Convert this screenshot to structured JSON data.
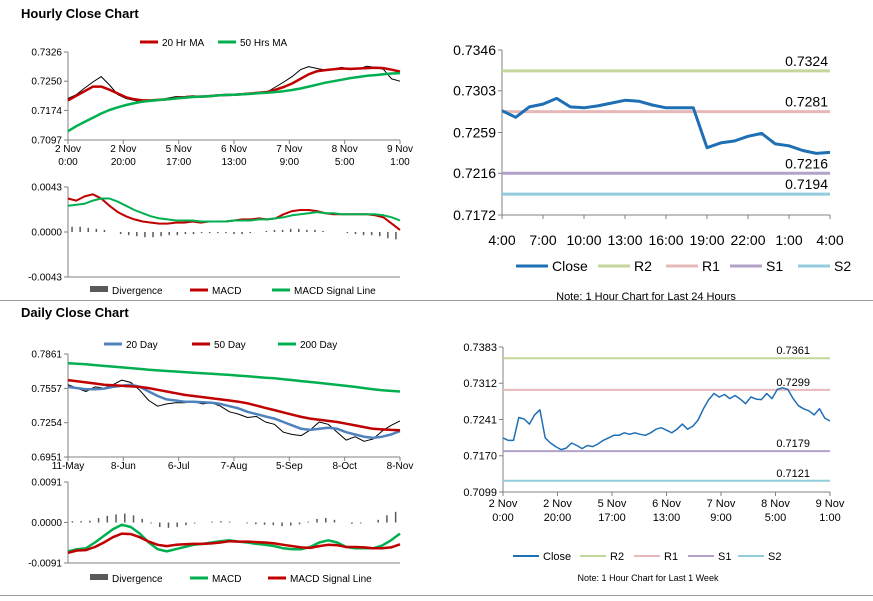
{
  "sections": {
    "hourly_title": "Hourly Close Chart",
    "daily_title": "Daily Close Chart"
  },
  "chart_data": [
    {
      "id": "hourly_price",
      "type": "line",
      "ylim": [
        0.7097,
        0.7326
      ],
      "yticks": [
        "0.7326",
        "0.7250",
        "0.7174",
        "0.7097"
      ],
      "xlabels": [
        "2 Nov\n0:00",
        "2 Nov\n20:00",
        "5 Nov\n17:00",
        "6 Nov\n13:00",
        "7 Nov\n9:00",
        "8 Nov\n5:00",
        "9 Nov\n1:00"
      ],
      "legend": [
        "20 Hr MA",
        "50 Hrs MA"
      ],
      "series": [
        {
          "name": "Close",
          "color": "#000000",
          "values": [
            0.7205,
            0.7215,
            0.7232,
            0.7248,
            0.7262,
            0.724,
            0.7215,
            0.7205,
            0.72,
            0.7195,
            0.7198,
            0.72,
            0.7206,
            0.721,
            0.721,
            0.7212,
            0.721,
            0.7213,
            0.7214,
            0.7215,
            0.7216,
            0.7218,
            0.7219,
            0.722,
            0.7222,
            0.7235,
            0.7248,
            0.7262,
            0.728,
            0.7288,
            0.7283,
            0.7279,
            0.7282,
            0.7286,
            0.728,
            0.7282,
            0.7289,
            0.7286,
            0.7281,
            0.7256,
            0.725
          ]
        },
        {
          "name": "20 Hr MA",
          "color": "#c00000",
          "values": [
            0.72,
            0.7212,
            0.7224,
            0.7236,
            0.7236,
            0.7228,
            0.7218,
            0.7208,
            0.7203,
            0.72,
            0.72,
            0.7202,
            0.7203,
            0.7206,
            0.7208,
            0.721,
            0.721,
            0.7211,
            0.7213,
            0.7214,
            0.7215,
            0.7216,
            0.7218,
            0.722,
            0.7222,
            0.7228,
            0.7235,
            0.7244,
            0.7256,
            0.7268,
            0.7276,
            0.7279,
            0.7281,
            0.7283,
            0.7282,
            0.7283,
            0.7284,
            0.7285,
            0.7284,
            0.728,
            0.7275
          ]
        },
        {
          "name": "50 Hrs MA",
          "color": "#00b050",
          "values": [
            0.712,
            0.7133,
            0.7144,
            0.7155,
            0.7166,
            0.7175,
            0.7182,
            0.7188,
            0.7193,
            0.7197,
            0.7199,
            0.7201,
            0.7203,
            0.7205,
            0.7207,
            0.7209,
            0.721,
            0.7211,
            0.7213,
            0.7214,
            0.7215,
            0.7216,
            0.7217,
            0.7219,
            0.722,
            0.7222,
            0.7224,
            0.7227,
            0.7231,
            0.7236,
            0.7241,
            0.7246,
            0.725,
            0.7254,
            0.7258,
            0.7261,
            0.7264,
            0.7266,
            0.7268,
            0.727,
            0.7271
          ]
        }
      ]
    },
    {
      "id": "hourly_macd",
      "type": "line",
      "ylim": [
        -0.0043,
        0.0043
      ],
      "yticks": [
        "0.0043",
        "0.0000",
        "-0.0043"
      ],
      "legend": [
        "Divergence",
        "MACD",
        "MACD Signal Line"
      ],
      "series": [
        {
          "name": "Divergence",
          "color": "#595959",
          "values": [
            0.0005,
            0.0005,
            0.0004,
            0.0003,
            0.0002,
            0.0,
            -0.0002,
            -0.0003,
            -0.0004,
            -0.0005,
            -0.0005,
            -0.0004,
            -0.0003,
            -0.0003,
            -0.0002,
            -0.0002,
            -0.0001,
            -0.0001,
            -0.0001,
            -0.0001,
            -0.0002,
            -0.0002,
            -0.0001,
            0.0,
            0.0001,
            0.0002,
            0.0002,
            0.0003,
            0.0003,
            0.0002,
            0.0002,
            0.0001,
            0.0,
            0.0,
            -0.0001,
            -0.0002,
            -0.0003,
            -0.0003,
            -0.0004,
            -0.0006,
            -0.0007
          ]
        },
        {
          "name": "MACD",
          "color": "#c00000",
          "values": [
            0.0032,
            0.003,
            0.0034,
            0.0036,
            0.0032,
            0.0025,
            0.0019,
            0.0015,
            0.0012,
            0.001,
            0.0009,
            0.0008,
            0.0008,
            0.0009,
            0.0009,
            0.001,
            0.0009,
            0.001,
            0.001,
            0.001,
            0.0011,
            0.0012,
            0.0012,
            0.0013,
            0.0012,
            0.0013,
            0.0017,
            0.002,
            0.0021,
            0.0021,
            0.002,
            0.0018,
            0.0017,
            0.0017,
            0.0017,
            0.0017,
            0.0017,
            0.0016,
            0.0014,
            0.0008,
            0.0002
          ]
        },
        {
          "name": "MACD Signal Line",
          "color": "#00b050",
          "values": [
            0.0025,
            0.0026,
            0.0027,
            0.003,
            0.0032,
            0.0032,
            0.0029,
            0.0025,
            0.0021,
            0.0018,
            0.0015,
            0.0013,
            0.0012,
            0.0011,
            0.0011,
            0.0011,
            0.001,
            0.001,
            0.001,
            0.001,
            0.0011,
            0.0011,
            0.0011,
            0.0012,
            0.0012,
            0.0013,
            0.0014,
            0.0016,
            0.0017,
            0.0018,
            0.0019,
            0.0018,
            0.0018,
            0.0017,
            0.0017,
            0.0017,
            0.0017,
            0.0017,
            0.0016,
            0.0014,
            0.0011
          ]
        }
      ]
    },
    {
      "id": "hourly_levels",
      "type": "line",
      "ylim": [
        0.7172,
        0.7346
      ],
      "yticks": [
        "0.7346",
        "0.7303",
        "0.7259",
        "0.7216",
        "0.7172"
      ],
      "xlabels": [
        "4:00",
        "7:00",
        "10:00",
        "13:00",
        "16:00",
        "19:00",
        "22:00",
        "1:00",
        "4:00"
      ],
      "legend": [
        "Close",
        "R2",
        "R1",
        "S1",
        "S2"
      ],
      "note": "Note: 1 Hour Chart for Last 24 Hours",
      "levels": [
        {
          "name": "R2",
          "value": 0.7324,
          "label": "0.7324",
          "color": "#c3d69b"
        },
        {
          "name": "R1",
          "value": 0.7281,
          "label": "0.7281",
          "color": "#e6b9b8"
        },
        {
          "name": "S1",
          "value": 0.7216,
          "label": "0.7216",
          "color": "#b3a2c7"
        },
        {
          "name": "S2",
          "value": 0.7194,
          "label": "0.7194",
          "color": "#93cddd"
        }
      ],
      "close": {
        "name": "Close",
        "color": "#1f6fb5",
        "x": [
          0,
          1,
          2,
          3,
          4,
          5,
          6,
          7,
          8,
          9,
          10,
          11,
          12,
          13,
          14,
          15,
          16,
          17,
          18,
          19,
          20,
          21,
          22,
          23,
          24
        ],
        "values": [
          0.7282,
          0.7275,
          0.7286,
          0.7289,
          0.7295,
          0.7286,
          0.7285,
          0.7287,
          0.729,
          0.7293,
          0.7292,
          0.7288,
          0.7285,
          0.7285,
          0.7285,
          0.7243,
          0.7248,
          0.725,
          0.7255,
          0.7258,
          0.7247,
          0.7245,
          0.724,
          0.7237,
          0.7238
        ]
      }
    },
    {
      "id": "daily_price",
      "type": "line",
      "ylim": [
        0.6951,
        0.7861
      ],
      "yticks": [
        "0.7861",
        "0.7557",
        "0.7254",
        "0.6951"
      ],
      "xlabels": [
        "11-May",
        "8-Jun",
        "6-Jul",
        "7-Aug",
        "5-Sep",
        "8-Oct",
        "8-Nov"
      ],
      "legend": [
        "20 Day",
        "50 Day",
        "200 Day"
      ],
      "series": [
        {
          "name": "Close",
          "color": "#000000",
          "values": [
            0.759,
            0.756,
            0.753,
            0.757,
            0.756,
            0.759,
            0.763,
            0.761,
            0.754,
            0.745,
            0.74,
            0.742,
            0.743,
            0.743,
            0.744,
            0.742,
            0.743,
            0.74,
            0.735,
            0.733,
            0.73,
            0.731,
            0.726,
            0.724,
            0.717,
            0.715,
            0.714,
            0.719,
            0.726,
            0.724,
            0.717,
            0.71,
            0.713,
            0.709,
            0.711,
            0.718,
            0.723,
            0.727
          ]
        },
        {
          "name": "20 Day",
          "color": "#4f81bd",
          "values": [
            0.757,
            0.756,
            0.755,
            0.755,
            0.7555,
            0.757,
            0.758,
            0.759,
            0.757,
            0.753,
            0.749,
            0.746,
            0.745,
            0.744,
            0.744,
            0.7435,
            0.743,
            0.742,
            0.74,
            0.738,
            0.735,
            0.733,
            0.731,
            0.729,
            0.726,
            0.723,
            0.72,
            0.719,
            0.72,
            0.721,
            0.72,
            0.717,
            0.715,
            0.713,
            0.712,
            0.713,
            0.715,
            0.718
          ]
        },
        {
          "name": "50 Day",
          "color": "#c00000",
          "values": [
            0.763,
            0.762,
            0.761,
            0.76,
            0.759,
            0.7585,
            0.758,
            0.7575,
            0.757,
            0.756,
            0.7545,
            0.753,
            0.7515,
            0.75,
            0.749,
            0.748,
            0.747,
            0.746,
            0.745,
            0.744,
            0.7425,
            0.7405,
            0.7385,
            0.7365,
            0.7345,
            0.7325,
            0.7305,
            0.729,
            0.728,
            0.727,
            0.726,
            0.7245,
            0.723,
            0.7215,
            0.72,
            0.7195,
            0.719,
            0.7188
          ]
        },
        {
          "name": "200 Day",
          "color": "#00b050",
          "values": [
            0.778,
            0.7775,
            0.777,
            0.7763,
            0.7756,
            0.775,
            0.7743,
            0.7736,
            0.7729,
            0.7722,
            0.7716,
            0.7711,
            0.7706,
            0.7701,
            0.7696,
            0.7691,
            0.7686,
            0.7681,
            0.7676,
            0.767,
            0.7664,
            0.7658,
            0.7652,
            0.7646,
            0.7638,
            0.763,
            0.7622,
            0.7614,
            0.7606,
            0.7597,
            0.7588,
            0.7579,
            0.757,
            0.756,
            0.755,
            0.754,
            0.7535,
            0.753
          ]
        }
      ]
    },
    {
      "id": "daily_macd",
      "type": "line",
      "ylim": [
        -0.0091,
        0.0091
      ],
      "yticks": [
        "0.0091",
        "0.0000",
        "-0.0091"
      ],
      "legend": [
        "Divergence",
        "MACD",
        "MACD Signal Line"
      ],
      "series": [
        {
          "name": "Divergence",
          "color": "#595959",
          "values": [
            0.0003,
            0.0003,
            0.0004,
            0.001,
            0.0015,
            0.0018,
            0.002,
            0.0016,
            0.0008,
            -0.0002,
            -0.001,
            -0.0012,
            -0.001,
            -0.0006,
            -0.0002,
            0.0,
            0.0002,
            0.0003,
            0.0002,
            0.0,
            -0.0002,
            -0.0004,
            -0.0005,
            -0.0006,
            -0.0008,
            -0.0007,
            -0.0004,
            0.0002,
            0.0008,
            0.001,
            0.0006,
            0.0,
            -0.0003,
            -0.0002,
            0.0,
            0.0006,
            0.0016,
            0.0024
          ]
        },
        {
          "name": "MACD",
          "color": "#00b050",
          "values": [
            -0.0065,
            -0.006,
            -0.0058,
            -0.0045,
            -0.003,
            -0.0015,
            -0.0005,
            -0.001,
            -0.0025,
            -0.0045,
            -0.006,
            -0.0065,
            -0.006,
            -0.0055,
            -0.005,
            -0.0048,
            -0.0045,
            -0.0042,
            -0.004,
            -0.0043,
            -0.0045,
            -0.0048,
            -0.005,
            -0.0053,
            -0.0058,
            -0.006,
            -0.006,
            -0.0055,
            -0.0045,
            -0.004,
            -0.0045,
            -0.0055,
            -0.0058,
            -0.0058,
            -0.0058,
            -0.0052,
            -0.004,
            -0.0025
          ]
        },
        {
          "name": "MACD Signal Line",
          "color": "#c00000",
          "values": [
            -0.0068,
            -0.0063,
            -0.0062,
            -0.0055,
            -0.0045,
            -0.0033,
            -0.0025,
            -0.0026,
            -0.0033,
            -0.0043,
            -0.005,
            -0.0053,
            -0.005,
            -0.0049,
            -0.0048,
            -0.0048,
            -0.0047,
            -0.0045,
            -0.0042,
            -0.0043,
            -0.0043,
            -0.0044,
            -0.0045,
            -0.0047,
            -0.005,
            -0.0053,
            -0.0056,
            -0.0057,
            -0.0053,
            -0.005,
            -0.0051,
            -0.0055,
            -0.0055,
            -0.0056,
            -0.0058,
            -0.0058,
            -0.0056,
            -0.0049
          ]
        }
      ]
    },
    {
      "id": "daily_levels",
      "type": "line",
      "ylim": [
        0.7099,
        0.7383
      ],
      "yticks": [
        "0.7383",
        "0.7312",
        "0.7241",
        "0.7170",
        "0.7099"
      ],
      "xlabels": [
        "2 Nov\n0:00",
        "2 Nov\n20:00",
        "5 Nov\n17:00",
        "6 Nov\n13:00",
        "7 Nov\n9:00",
        "8 Nov\n5:00",
        "9 Nov\n1:00"
      ],
      "legend": [
        "Close",
        "R2",
        "R1",
        "S1",
        "S2"
      ],
      "note": "Note: 1 Hour Chart for Last 1 Week",
      "levels": [
        {
          "name": "R2",
          "value": 0.7361,
          "label": "0.7361",
          "color": "#c3d69b"
        },
        {
          "name": "R1",
          "value": 0.7299,
          "label": "0.7299",
          "color": "#e6b9b8"
        },
        {
          "name": "S1",
          "value": 0.7179,
          "label": "0.7179",
          "color": "#b3a2c7"
        },
        {
          "name": "S2",
          "value": 0.7121,
          "label": "0.7121",
          "color": "#93cddd"
        }
      ],
      "close": {
        "name": "Close",
        "color": "#1f6fb5",
        "values": [
          0.7205,
          0.72,
          0.72,
          0.7245,
          0.7242,
          0.7232,
          0.725,
          0.726,
          0.7205,
          0.7195,
          0.7188,
          0.7182,
          0.7185,
          0.7195,
          0.719,
          0.7184,
          0.719,
          0.7188,
          0.7193,
          0.72,
          0.7205,
          0.721,
          0.721,
          0.7215,
          0.7212,
          0.7215,
          0.7212,
          0.721,
          0.7215,
          0.7222,
          0.7225,
          0.722,
          0.7215,
          0.7222,
          0.7232,
          0.7222,
          0.7228,
          0.724,
          0.7262,
          0.728,
          0.7292,
          0.7285,
          0.729,
          0.7282,
          0.7288,
          0.7281,
          0.7272,
          0.7285,
          0.7281,
          0.728,
          0.7292,
          0.7282,
          0.73,
          0.7303,
          0.73,
          0.7282,
          0.7268,
          0.7262,
          0.7258,
          0.725,
          0.7262,
          0.7244,
          0.7238
        ]
      }
    }
  ]
}
